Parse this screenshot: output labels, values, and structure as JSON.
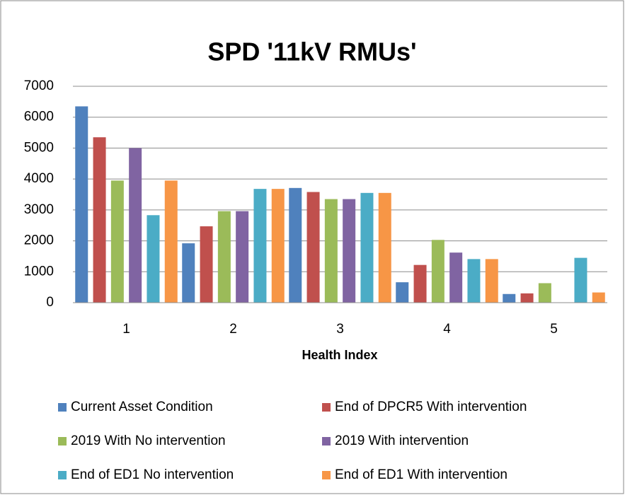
{
  "chart_data": {
    "type": "bar",
    "title": "SPD '11kV RMUs'",
    "x_label": "Health Index",
    "categories": [
      "1",
      "2",
      "3",
      "4",
      "5"
    ],
    "series": [
      {
        "name": "Current Asset Condition",
        "color": "#4f81bd",
        "values": [
          6350,
          1920,
          3710,
          660,
          280
        ]
      },
      {
        "name": "End of DPCR5 With intervention",
        "color": "#c0504d",
        "values": [
          5350,
          2470,
          3580,
          1220,
          300
        ]
      },
      {
        "name": "2019 With No intervention",
        "color": "#9bbb59",
        "values": [
          3950,
          2960,
          3350,
          2030,
          630
        ]
      },
      {
        "name": "2019 With intervention",
        "color": "#8064a2",
        "values": [
          5000,
          2960,
          3350,
          1620,
          0
        ]
      },
      {
        "name": "End of ED1 No intervention",
        "color": "#4bacc6",
        "values": [
          2830,
          3680,
          3550,
          1410,
          1450
        ]
      },
      {
        "name": "End of ED1 With intervention",
        "color": "#f79646",
        "values": [
          3950,
          3680,
          3550,
          1410,
          330
        ]
      }
    ],
    "ylim": [
      0,
      7000
    ],
    "yticks": [
      0,
      1000,
      2000,
      3000,
      4000,
      5000,
      6000,
      7000
    ],
    "grid": true,
    "legend": "bottom"
  }
}
